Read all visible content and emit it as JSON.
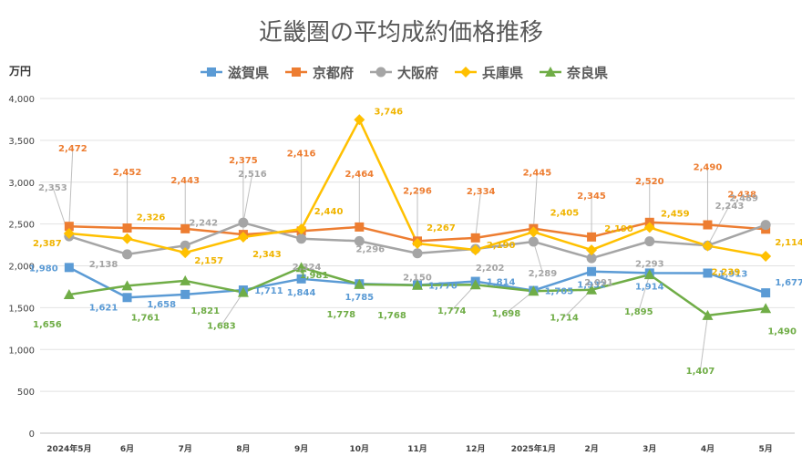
{
  "chart_data": {
    "type": "line",
    "title": "近畿圏の平均成約価格推移",
    "ylabel": "万円",
    "xlabel": "",
    "ylim": [
      0,
      4000
    ],
    "yticks": [
      0,
      500,
      1000,
      1500,
      2000,
      2500,
      3000,
      3500,
      4000
    ],
    "ytick_labels": [
      "0",
      "500",
      "1,000",
      "1,500",
      "2,000",
      "2,500",
      "3,000",
      "3,500",
      "4,000"
    ],
    "grid": true,
    "legend_position": "top",
    "categories": [
      "2024年5月",
      "6月",
      "7月",
      "8月",
      "9月",
      "10月",
      "11月",
      "12月",
      "2025年1月",
      "2月",
      "3月",
      "4月",
      "5月"
    ],
    "series": [
      {
        "name": "滋賀県",
        "color": "#5B9BD5",
        "marker": "square",
        "values": [
          1980,
          1621,
          1658,
          1711,
          1844,
          1785,
          1770,
          1814,
          1705,
          1932,
          1914,
          1913,
          1677
        ],
        "labels": [
          "1,980",
          "1,621",
          "1,658",
          "1,711",
          "1,844",
          "1,785",
          "1,770",
          "1,814",
          "1,705",
          "1,932",
          "1,914",
          "1,913",
          "1,677"
        ]
      },
      {
        "name": "京都府",
        "color": "#ED7D31",
        "marker": "square",
        "values": [
          2472,
          2452,
          2443,
          2375,
          2416,
          2464,
          2296,
          2334,
          2445,
          2345,
          2520,
          2490,
          2438
        ],
        "labels": [
          "2,472",
          "2,452",
          "2,443",
          "2,375",
          "2,416",
          "2,464",
          "2,296",
          "2,334",
          "2,445",
          "2,345",
          "2,520",
          "2,490",
          "2,438"
        ]
      },
      {
        "name": "大阪府",
        "color": "#A5A5A5",
        "marker": "circle",
        "values": [
          2353,
          2138,
          2242,
          2516,
          2324,
          2296,
          2150,
          2202,
          2289,
          2091,
          2293,
          2243,
          2489
        ],
        "labels": [
          "2,353",
          "2,138",
          "2,242",
          "2,516",
          "2,324",
          "2,296",
          "2,150",
          "2,202",
          "2,289",
          "2,091",
          "2,293",
          "2,243",
          "2,489"
        ]
      },
      {
        "name": "兵庫県",
        "color": "#FFC000",
        "marker": "diamond",
        "values": [
          2387,
          2326,
          2157,
          2343,
          2440,
          3746,
          2267,
          2190,
          2405,
          2190,
          2459,
          2239,
          2114
        ],
        "labels": [
          "2,387",
          "2,326",
          "2,157",
          "2,343",
          "2,440",
          "3,746",
          "2,267",
          "2,190",
          "2,405",
          "2,190",
          "2,459",
          "2,239",
          "2,114"
        ]
      },
      {
        "name": "奈良県",
        "color": "#70AD47",
        "marker": "triangle",
        "values": [
          1656,
          1761,
          1821,
          1683,
          1981,
          1778,
          1768,
          1774,
          1698,
          1714,
          1895,
          1407,
          1490
        ],
        "labels": [
          "1,656",
          "1,761",
          "1,821",
          "1,683",
          "1,981",
          "1,778",
          "1,768",
          "1,774",
          "1,698",
          "1,714",
          "1,895",
          "1,407",
          "1,490"
        ]
      }
    ]
  }
}
